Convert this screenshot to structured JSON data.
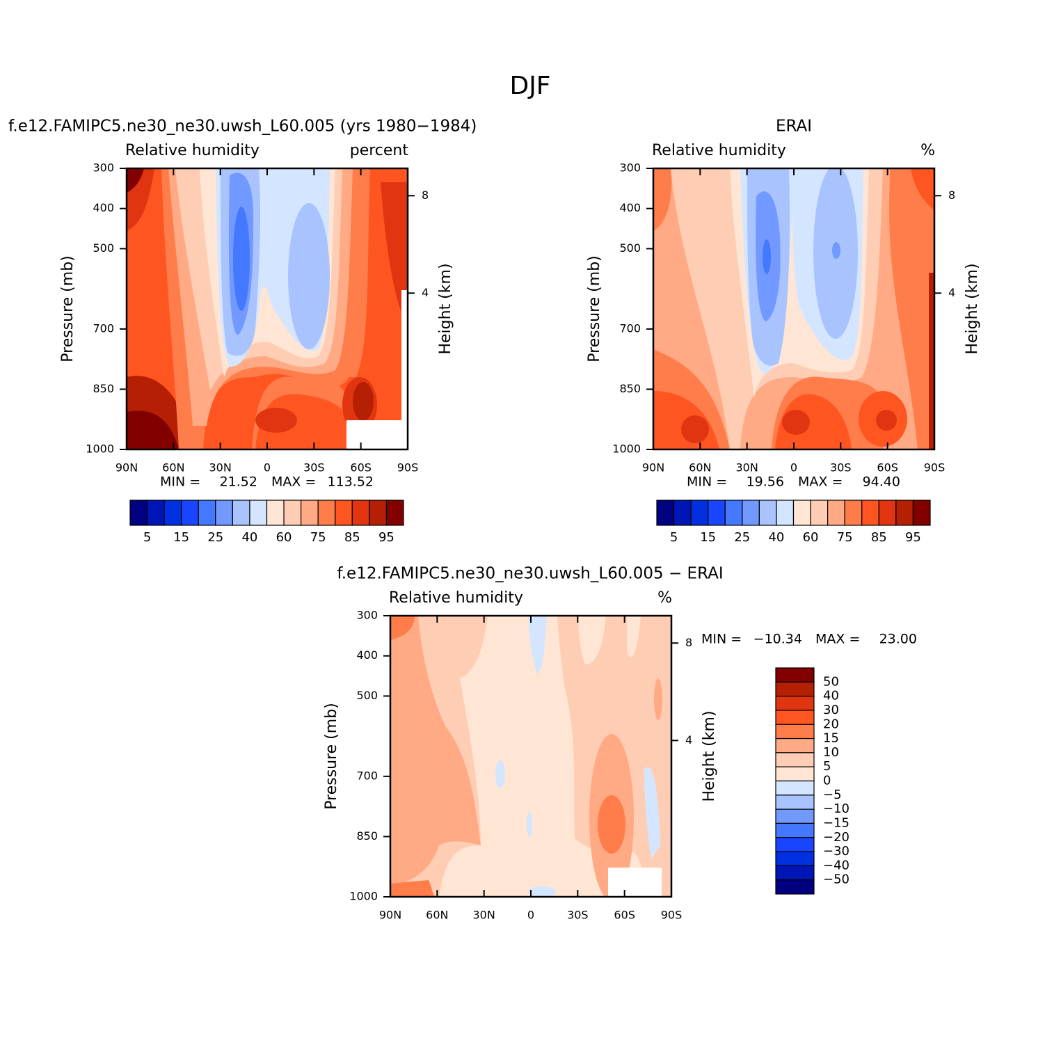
{
  "title": "DJF",
  "chart_data": [
    {
      "type": "contour",
      "title": "f.e12.FAMIPC5.ne30_ne30.uwsh_L60.005 (yrs 1980−1984)",
      "subtitle_left": "Relative humidity",
      "subtitle_right": "percent",
      "ylabel": "Pressure (mb)",
      "y2label": "Height (km)",
      "xlim": [
        90,
        -90
      ],
      "xticks": [
        {
          "value": 90,
          "label": "90N"
        },
        {
          "value": 60,
          "label": "60N"
        },
        {
          "value": 30,
          "label": "30N"
        },
        0,
        {
          "value": -30,
          "label": "30S"
        },
        {
          "value": -60,
          "label": "60S"
        },
        {
          "value": -90,
          "label": "90S"
        }
      ],
      "ylim": [
        300,
        1000
      ],
      "yticks": [
        300,
        400,
        500,
        700,
        850,
        1000
      ],
      "y2ticks": [
        4,
        8
      ],
      "min_text": "MIN =",
      "max_text": "MAX =",
      "min": {
        "value": 21.52,
        "label": "21.52"
      },
      "max": {
        "value": 113.52,
        "label": "113.52"
      },
      "colorbar": {
        "colors": [
          "#000080",
          "#0015b5",
          "#0030e0",
          "#1a45ff",
          "#4478ff",
          "#7199ff",
          "#a9c3ff",
          "#d4e6ff",
          "#ffe5d4",
          "#ffcdb4",
          "#ffaa85",
          "#ff7d4b",
          "#ff5520",
          "#e03510",
          "#b52005",
          "#820000"
        ],
        "labels": [
          5,
          15,
          25,
          40,
          60,
          75,
          85,
          95
        ]
      }
    },
    {
      "type": "contour",
      "title": "ERAI",
      "subtitle_left": "Relative humidity",
      "subtitle_right": "%",
      "ylabel": "Pressure (mb)",
      "y2label": "Height (km)",
      "xlim": [
        90,
        -90
      ],
      "xticks": [
        {
          "value": 90,
          "label": "90N"
        },
        {
          "value": 60,
          "label": "60N"
        },
        {
          "value": 30,
          "label": "30N"
        },
        0,
        {
          "value": -30,
          "label": "30S"
        },
        {
          "value": -60,
          "label": "60S"
        },
        {
          "value": -90,
          "label": "90S"
        }
      ],
      "ylim": [
        300,
        1000
      ],
      "yticks": [
        300,
        400,
        500,
        700,
        850,
        1000
      ],
      "y2ticks": [
        4,
        8
      ],
      "min_text": "MIN =",
      "max_text": "MAX =",
      "min": {
        "value": 19.56,
        "label": "19.56"
      },
      "max": {
        "value": 94.4,
        "label": "94.40"
      },
      "colorbar": {
        "colors": [
          "#000080",
          "#0015b5",
          "#0030e0",
          "#1a45ff",
          "#4478ff",
          "#7199ff",
          "#a9c3ff",
          "#d4e6ff",
          "#ffe5d4",
          "#ffcdb4",
          "#ffaa85",
          "#ff7d4b",
          "#ff5520",
          "#e03510",
          "#b52005",
          "#820000"
        ],
        "labels": [
          5,
          15,
          25,
          40,
          60,
          75,
          85,
          95
        ]
      }
    },
    {
      "type": "contour",
      "title": "f.e12.FAMIPC5.ne30_ne30.uwsh_L60.005 − ERAI",
      "subtitle_left": "Relative humidity",
      "subtitle_right": "%",
      "ylabel": "Pressure (mb)",
      "y2label": "Height (km)",
      "xlim": [
        90,
        -90
      ],
      "xticks": [
        {
          "value": 90,
          "label": "90N"
        },
        {
          "value": 60,
          "label": "60N"
        },
        {
          "value": 30,
          "label": "30N"
        },
        0,
        {
          "value": -30,
          "label": "30S"
        },
        {
          "value": -60,
          "label": "60S"
        },
        {
          "value": -90,
          "label": "90S"
        }
      ],
      "ylim": [
        300,
        1000
      ],
      "yticks": [
        300,
        400,
        500,
        700,
        850,
        1000
      ],
      "y2ticks": [
        4,
        8
      ],
      "min_text": "MIN =",
      "max_text": "MAX =",
      "min": {
        "value": -10.34,
        "label": "−10.34"
      },
      "max": {
        "value": 23,
        "label": "23.00"
      },
      "colorbar": {
        "colors": [
          "#820000",
          "#b52005",
          "#e03510",
          "#ff5520",
          "#ff7d4b",
          "#ffaa85",
          "#ffcdb4",
          "#ffe5d4",
          "#d4e6ff",
          "#a9c3ff",
          "#7199ff",
          "#4478ff",
          "#1a45ff",
          "#0030e0",
          "#0015b5",
          "#000080"
        ],
        "labels": [
          50,
          40,
          30,
          20,
          15,
          10,
          5,
          0,
          {
            "value": -5,
            "label": "−5"
          },
          {
            "value": -10,
            "label": "−10"
          },
          {
            "value": -15,
            "label": "−15"
          },
          {
            "value": -20,
            "label": "−20"
          },
          {
            "value": -30,
            "label": "−30"
          },
          {
            "value": -40,
            "label": "−40"
          },
          {
            "value": -50,
            "label": "−50"
          }
        ]
      }
    }
  ]
}
